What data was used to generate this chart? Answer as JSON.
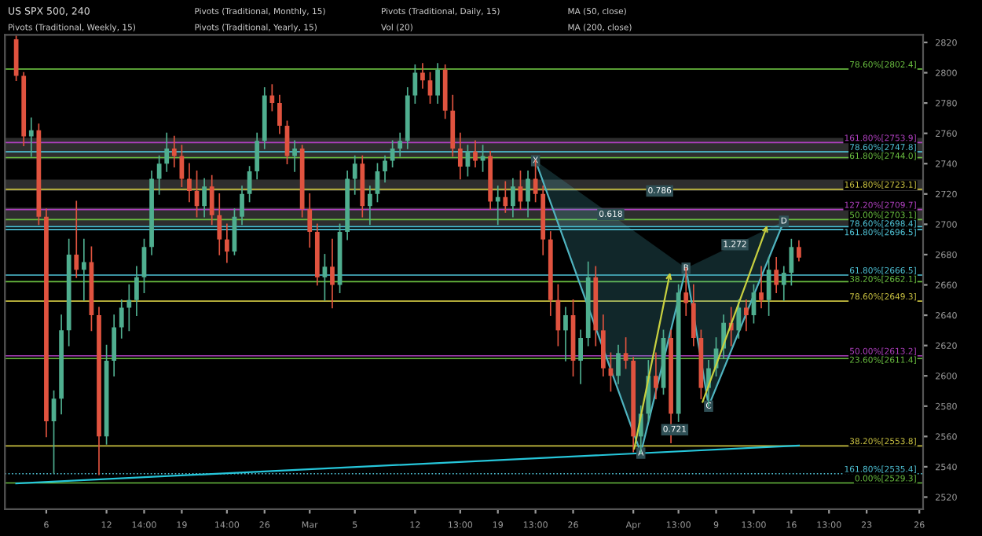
{
  "chart_data": {
    "type": "candlestick",
    "title": "US SPX 500, 240",
    "categories": [
      null,
      null,
      null,
      null,
      null,
      "6",
      null,
      null,
      null,
      null,
      null,
      null,
      null,
      "12",
      null,
      null,
      null,
      null,
      "14:00",
      null,
      null,
      null,
      null,
      "19",
      null,
      null,
      null,
      null,
      null,
      "14:00",
      null,
      null,
      null,
      null,
      "26",
      null,
      null,
      null,
      null,
      null,
      "Mar",
      null,
      null,
      null,
      null,
      null,
      "5",
      null,
      null,
      null,
      null,
      null,
      null,
      null,
      "12",
      null,
      null,
      null,
      null,
      null,
      "13:00",
      null,
      null,
      null,
      null,
      "19",
      null,
      null,
      null,
      null,
      "13:00",
      null,
      null,
      null,
      null,
      "26",
      null,
      null,
      null,
      null,
      null,
      null,
      null,
      "Apr",
      null,
      null,
      null,
      null,
      null,
      "13:00",
      null,
      null,
      null,
      null,
      "9",
      null,
      null,
      null,
      null,
      "13:00",
      null,
      null,
      null,
      null,
      "16",
      null,
      null,
      null,
      null,
      "13:00",
      null,
      null,
      null,
      null,
      "23",
      null,
      null,
      null,
      null,
      null,
      null,
      "26"
    ],
    "ohlc": [
      null,
      [
        2822,
        2824,
        2795,
        2798
      ],
      [
        2798,
        2800,
        2752,
        2758
      ],
      [
        2758,
        2770,
        2745,
        2762
      ],
      [
        2762,
        2766,
        2700,
        2705
      ],
      [
        2705,
        2710,
        2560,
        2570
      ],
      [
        2570,
        2590,
        2536,
        2585
      ],
      [
        2585,
        2640,
        2575,
        2630
      ],
      [
        2630,
        2690,
        2620,
        2680
      ],
      [
        2680,
        2715,
        2665,
        2670
      ],
      [
        2670,
        2690,
        2650,
        2675
      ],
      [
        2675,
        2685,
        2630,
        2640
      ],
      [
        2640,
        2645,
        2535,
        2560
      ],
      [
        2560,
        2620,
        2555,
        2610
      ],
      [
        2610,
        2640,
        2600,
        2632
      ],
      [
        2632,
        2650,
        2625,
        2645
      ],
      [
        2645,
        2660,
        2630,
        2650
      ],
      [
        2650,
        2672,
        2640,
        2665
      ],
      [
        2665,
        2690,
        2655,
        2685
      ],
      [
        2685,
        2735,
        2680,
        2730
      ],
      [
        2730,
        2745,
        2720,
        2740
      ],
      [
        2740,
        2760,
        2735,
        2750
      ],
      [
        2750,
        2758,
        2738,
        2745
      ],
      [
        2745,
        2752,
        2725,
        2730
      ],
      [
        2730,
        2740,
        2715,
        2722
      ],
      [
        2722,
        2735,
        2705,
        2712
      ],
      [
        2712,
        2730,
        2705,
        2725
      ],
      [
        2725,
        2732,
        2700,
        2706
      ],
      [
        2706,
        2720,
        2680,
        2690
      ],
      [
        2690,
        2700,
        2675,
        2682
      ],
      [
        2682,
        2710,
        2680,
        2705
      ],
      [
        2705,
        2725,
        2700,
        2720
      ],
      [
        2720,
        2738,
        2715,
        2735
      ],
      [
        2735,
        2760,
        2730,
        2755
      ],
      [
        2755,
        2790,
        2750,
        2785
      ],
      [
        2785,
        2792,
        2775,
        2780
      ],
      [
        2780,
        2785,
        2760,
        2765
      ],
      [
        2765,
        2768,
        2740,
        2745
      ],
      [
        2745,
        2755,
        2735,
        2750
      ],
      [
        2750,
        2752,
        2705,
        2710
      ],
      [
        2710,
        2720,
        2685,
        2695
      ],
      [
        2695,
        2700,
        2660,
        2665
      ],
      [
        2665,
        2680,
        2650,
        2672
      ],
      [
        2672,
        2690,
        2645,
        2660
      ],
      [
        2660,
        2700,
        2655,
        2695
      ],
      [
        2695,
        2735,
        2690,
        2730
      ],
      [
        2730,
        2745,
        2720,
        2740
      ],
      [
        2740,
        2745,
        2705,
        2712
      ],
      [
        2712,
        2725,
        2700,
        2720
      ],
      [
        2720,
        2740,
        2715,
        2735
      ],
      [
        2735,
        2745,
        2728,
        2742
      ],
      [
        2742,
        2755,
        2738,
        2750
      ],
      [
        2750,
        2760,
        2745,
        2755
      ],
      [
        2755,
        2790,
        2750,
        2785
      ],
      [
        2785,
        2805,
        2780,
        2800
      ],
      [
        2800,
        2806,
        2790,
        2795
      ],
      [
        2795,
        2800,
        2780,
        2785
      ],
      [
        2785,
        2806,
        2780,
        2802
      ],
      [
        2802,
        2805,
        2770,
        2775
      ],
      [
        2775,
        2785,
        2745,
        2750
      ],
      [
        2750,
        2760,
        2730,
        2738
      ],
      [
        2738,
        2752,
        2732,
        2748
      ],
      [
        2748,
        2755,
        2738,
        2742
      ],
      [
        2742,
        2752,
        2735,
        2745
      ],
      [
        2745,
        2748,
        2710,
        2715
      ],
      [
        2715,
        2725,
        2700,
        2718
      ],
      [
        2718,
        2728,
        2708,
        2712
      ],
      [
        2712,
        2730,
        2705,
        2725
      ],
      [
        2725,
        2735,
        2710,
        2715
      ],
      [
        2715,
        2735,
        2705,
        2730
      ],
      [
        2730,
        2742,
        2715,
        2720
      ],
      [
        2720,
        2725,
        2680,
        2690
      ],
      [
        2690,
        2695,
        2640,
        2650
      ],
      [
        2650,
        2660,
        2620,
        2630
      ],
      [
        2630,
        2645,
        2610,
        2640
      ],
      [
        2640,
        2650,
        2600,
        2610
      ],
      [
        2610,
        2630,
        2595,
        2625
      ],
      [
        2625,
        2675,
        2620,
        2665
      ],
      [
        2665,
        2672,
        2620,
        2630
      ],
      [
        2630,
        2640,
        2600,
        2605
      ],
      [
        2605,
        2615,
        2590,
        2600
      ],
      [
        2600,
        2620,
        2595,
        2615
      ],
      [
        2615,
        2625,
        2605,
        2610
      ],
      [
        2610,
        2612,
        2550,
        2560
      ],
      [
        2560,
        2580,
        2549,
        2575
      ],
      [
        2575,
        2610,
        2570,
        2600
      ],
      [
        2600,
        2615,
        2585,
        2592
      ],
      [
        2592,
        2630,
        2588,
        2625
      ],
      [
        2625,
        2630,
        2556,
        2575
      ],
      [
        2575,
        2660,
        2570,
        2655
      ],
      [
        2655,
        2671,
        2640,
        2648
      ],
      [
        2648,
        2660,
        2620,
        2625
      ],
      [
        2625,
        2630,
        2585,
        2592
      ],
      [
        2592,
        2610,
        2580,
        2605
      ],
      [
        2605,
        2625,
        2600,
        2618
      ],
      [
        2618,
        2640,
        2612,
        2635
      ],
      [
        2635,
        2645,
        2620,
        2630
      ],
      [
        2630,
        2650,
        2625,
        2645
      ],
      [
        2645,
        2650,
        2630,
        2640
      ],
      [
        2640,
        2660,
        2635,
        2655
      ],
      [
        2655,
        2672,
        2645,
        2650
      ],
      [
        2650,
        2678,
        2640,
        2670
      ],
      [
        2670,
        2678,
        2655,
        2660
      ],
      [
        2660,
        2672,
        2650,
        2668
      ],
      [
        2668,
        2690,
        2660,
        2685
      ],
      [
        2685,
        2689,
        2676,
        2678
      ],
      null,
      null,
      null,
      null,
      null,
      null,
      null,
      null,
      null,
      null,
      null,
      null,
      null,
      null,
      null,
      null
    ],
    "series": [
      {
        "type": "line",
        "color": "#4fb3bf",
        "marker": "square",
        "values": [
          null,
          null,
          null,
          null,
          null,
          null,
          null,
          null,
          null,
          null,
          null,
          null,
          null,
          null,
          null,
          null,
          null,
          null,
          null,
          null,
          null,
          null,
          null,
          null,
          null,
          null,
          null,
          null,
          null,
          null,
          null,
          null,
          null,
          null,
          null,
          null,
          null,
          null,
          null,
          null,
          null,
          null,
          null,
          null,
          null,
          null,
          null,
          null,
          null,
          null,
          null,
          null,
          null,
          null,
          null,
          null,
          null,
          null,
          null,
          null,
          null,
          null,
          null,
          null,
          null,
          null,
          null,
          null,
          null,
          null,
          2742,
          null,
          null,
          null,
          null,
          null,
          null,
          null,
          null,
          null,
          null,
          null,
          null,
          null,
          2549,
          null,
          null,
          null,
          null,
          null,
          2671,
          null,
          null,
          2580,
          null,
          null,
          null,
          null,
          null,
          null,
          null,
          null,
          null,
          2702,
          null,
          null,
          null,
          null,
          null,
          null,
          null,
          null,
          null,
          null,
          null,
          null,
          null,
          null,
          null,
          null,
          null,
          null
        ],
        "value_labels": [
          null,
          null,
          null,
          null,
          null,
          null,
          null,
          null,
          null,
          null,
          null,
          null,
          null,
          null,
          null,
          null,
          null,
          null,
          null,
          null,
          null,
          null,
          null,
          null,
          null,
          null,
          null,
          null,
          null,
          null,
          null,
          null,
          null,
          null,
          null,
          null,
          null,
          null,
          null,
          null,
          null,
          null,
          null,
          null,
          null,
          null,
          null,
          null,
          null,
          null,
          null,
          null,
          null,
          null,
          null,
          null,
          null,
          null,
          null,
          null,
          null,
          null,
          null,
          null,
          null,
          null,
          null,
          null,
          null,
          null,
          "X",
          null,
          null,
          null,
          null,
          null,
          null,
          null,
          null,
          null,
          null,
          null,
          null,
          null,
          "A",
          null,
          null,
          null,
          null,
          null,
          "B",
          null,
          null,
          "C",
          null,
          null,
          null,
          null,
          null,
          null,
          null,
          null,
          null,
          "D",
          null,
          null,
          null,
          null,
          null,
          null,
          null,
          null,
          null,
          null,
          null,
          null,
          null,
          null,
          null,
          null,
          null,
          null
        ]
      },
      {
        "type": "line",
        "color": "#26c6da",
        "values": [
          null,
          2529,
          null,
          null,
          null,
          null,
          null,
          null,
          null,
          null,
          null,
          null,
          null,
          null,
          null,
          null,
          null,
          null,
          null,
          null,
          null,
          null,
          null,
          null,
          null,
          null,
          null,
          null,
          null,
          null,
          null,
          null,
          null,
          null,
          null,
          null,
          null,
          null,
          null,
          null,
          null,
          null,
          null,
          null,
          null,
          null,
          null,
          null,
          null,
          null,
          null,
          null,
          null,
          null,
          null,
          null,
          null,
          null,
          null,
          null,
          null,
          null,
          null,
          null,
          null,
          null,
          null,
          null,
          null,
          null,
          null,
          null,
          null,
          null,
          null,
          null,
          null,
          null,
          null,
          null,
          null,
          null,
          null,
          null,
          null,
          null,
          null,
          null,
          null,
          null,
          null,
          null,
          null,
          null,
          null,
          null,
          null,
          null,
          null,
          null,
          null,
          null,
          null,
          null,
          null,
          2554,
          null,
          null,
          null,
          null,
          null,
          null,
          null,
          null,
          null,
          null,
          null,
          null,
          null,
          null,
          null,
          null
        ]
      }
    ],
    "ylim": [
      2512,
      2825
    ],
    "yticks": [
      2520,
      2540,
      2560,
      2580,
      2600,
      2620,
      2640,
      2660,
      2680,
      2700,
      2720,
      2740,
      2760,
      2780,
      2800,
      2820
    ],
    "bands": [
      {
        "axis": "y",
        "from": 2743,
        "to": 2757,
        "color": "#3a3a3a"
      },
      {
        "axis": "y",
        "from": 2722,
        "to": 2729.5,
        "color": "#3a3a3a"
      },
      {
        "axis": "y",
        "from": 2699,
        "to": 2711,
        "color": "#3a3a3a"
      }
    ],
    "ref_lines": [
      {
        "axis": "y",
        "value": 2802.4,
        "label": "78.60%[2802.4]",
        "color": "#6abf40"
      },
      {
        "axis": "y",
        "value": 2753.9,
        "label": "161.80%[2753.9]",
        "color": "#b040c0"
      },
      {
        "axis": "y",
        "value": 2747.8,
        "label": "78.60%[2747.8]",
        "color": "#4fc3d7"
      },
      {
        "axis": "y",
        "value": 2744.0,
        "label": "61.80%[2744.0]",
        "color": "#6abf40"
      },
      {
        "axis": "y",
        "value": 2723.1,
        "label": "161.80%[2723.1]",
        "color": "#c8c040"
      },
      {
        "axis": "y",
        "value": 2709.7,
        "label": "127.20%[2709.7]",
        "color": "#b040c0"
      },
      {
        "axis": "y",
        "value": 2703.1,
        "label": "50.00%[2703.1]",
        "color": "#6abf40"
      },
      {
        "axis": "y",
        "value": 2698.4,
        "label": "78.60%[2698.4]",
        "color": "#4fc3d7"
      },
      {
        "axis": "y",
        "value": 2696.5,
        "label": "161.80%[2696.5]",
        "color": "#4fc3d7"
      },
      {
        "axis": "y",
        "value": 2666.5,
        "label": "61.80%[2666.5]",
        "color": "#4fc3d7"
      },
      {
        "axis": "y",
        "value": 2662.1,
        "label": "38.20%[2662.1]",
        "color": "#6abf40"
      },
      {
        "axis": "y",
        "value": 2649.3,
        "label": "78.60%[2649.3]",
        "color": "#c8c040"
      },
      {
        "axis": "y",
        "value": 2613.2,
        "label": "50.00%[2613.2]",
        "color": "#b040c0"
      },
      {
        "axis": "y",
        "value": 2611.4,
        "label": "23.60%[2611.4]",
        "color": "#6abf40"
      },
      {
        "axis": "y",
        "value": 2553.8,
        "label": "38.20%[2553.8]",
        "color": "#c8c040"
      },
      {
        "axis": "y",
        "value": 2535.4,
        "label": "161.80%[2535.4]",
        "color": "#4fc3d7",
        "line_style": "dotted"
      },
      {
        "axis": "y",
        "value": 2529.3,
        "label": "0.00%[2529.3]",
        "color": "#6abf40"
      }
    ],
    "annotations": [
      "Pivots (Traditional, Monthly, 15)",
      "Pivots (Traditional, Daily, 15)",
      "MA (50, close)",
      "Pivots (Traditional, Weekly, 15)",
      "Pivots (Traditional, Yearly, 15)",
      "Vol (20)",
      "MA (200, close)",
      "0.618",
      "0.786",
      "0.721",
      "1.272"
    ]
  }
}
